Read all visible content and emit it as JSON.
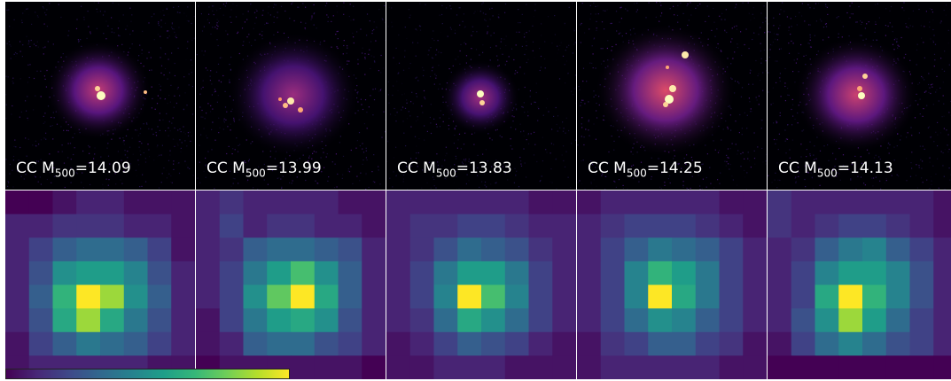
{
  "figure": {
    "panels": [
      {
        "prefix": "CC M",
        "subscript": "500",
        "suffix": "=14.09",
        "mass": 14.09
      },
      {
        "prefix": "CC M",
        "subscript": "500",
        "suffix": "=13.99",
        "mass": 13.99
      },
      {
        "prefix": "CC M",
        "subscript": "500",
        "suffix": "=13.83",
        "mass": 13.83
      },
      {
        "prefix": "CC M",
        "subscript": "500",
        "suffix": "=14.25",
        "mass": 14.25
      },
      {
        "prefix": "CC M",
        "subscript": "500",
        "suffix": "=14.13",
        "mass": 14.13
      }
    ],
    "colors": {
      "top_colormap": [
        "#000004",
        "#1c1044",
        "#4f127b",
        "#812581",
        "#b5367a",
        "#e55064",
        "#fb8761",
        "#fec287",
        "#fcfdbf"
      ],
      "bottom_colormap": [
        "#440154",
        "#482878",
        "#3e4989",
        "#31688e",
        "#26828e",
        "#1f9e89",
        "#35b779",
        "#6ece58",
        "#b5de2b",
        "#fde725"
      ],
      "divider": "#ffffff"
    }
  }
}
